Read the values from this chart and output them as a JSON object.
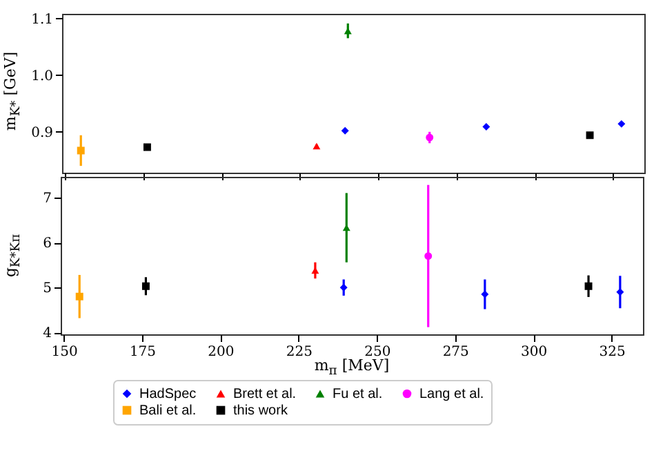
{
  "chart_data": [
    {
      "type": "scatter",
      "ylabel": "m$_{K*}$ [GeV]",
      "xlim": [
        149,
        335
      ],
      "xticks": [
        150,
        175,
        200,
        225,
        250,
        275,
        300,
        325
      ],
      "ylim": [
        0.828,
        1.108
      ],
      "yticks": [
        0.9,
        {
          "value": 1.0,
          "label": "1.0"
        },
        1.1
      ],
      "tick_labels": "y",
      "grid": false,
      "series": [
        {
          "color": "#0000ff",
          "marker": "diamond",
          "x": [
            239.4,
            284.5,
            327.7
          ],
          "values": [
            0.902,
            0.909,
            0.914
          ],
          "errors": [
            0.004,
            0.004,
            0.004
          ]
        },
        {
          "color": "#ff0000",
          "marker": "triangle",
          "x": [
            230.3
          ],
          "values": [
            0.875
          ],
          "errors": [
            0.003
          ]
        },
        {
          "color": "#008000",
          "marker": "triangle",
          "x": [
            240.3
          ],
          "values": [
            1.078
          ],
          "errors": [
            0.013
          ]
        },
        {
          "color": "#ff00ff",
          "marker": "circle",
          "x": [
            266.4
          ],
          "values": [
            0.89
          ],
          "errors": [
            0.01
          ]
        },
        {
          "color": "#ffa500",
          "marker": "square",
          "x": [
            155
          ],
          "values": [
            0.867
          ],
          "errors": [
            0.027
          ]
        },
        {
          "color": "#000000",
          "marker": "square",
          "x": [
            176.2,
            317.6
          ],
          "values": [
            0.873,
            0.894
          ],
          "errors": [
            0.005,
            0.004
          ]
        }
      ]
    },
    {
      "type": "scatter",
      "xlabel": "m$_{π}$ [MeV]",
      "ylabel": "g$_{K*Kπ}$",
      "xlim": [
        149,
        335
      ],
      "xticks": [
        150,
        175,
        200,
        225,
        250,
        275,
        300,
        325
      ],
      "ylim": [
        3.96,
        7.46
      ],
      "yticks": [
        4,
        5,
        6,
        7
      ],
      "grid": false,
      "legend": "bottom",
      "series": [
        {
          "name": "HadSpec",
          "color": "#0000ff",
          "marker": "diamond",
          "x": [
            239.4,
            284.5,
            327.7
          ],
          "values": [
            5.0,
            4.85,
            4.9
          ],
          "errors": [
            0.18,
            0.33,
            0.36
          ]
        },
        {
          "name": "Brett et al.",
          "color": "#ff0000",
          "marker": "triangle",
          "x": [
            230.3
          ],
          "values": [
            5.38
          ],
          "errors": [
            0.18
          ]
        },
        {
          "name": "Fu et al.",
          "color": "#008000",
          "marker": "triangle",
          "x": [
            240.3
          ],
          "values": [
            6.33
          ],
          "errors": [
            0.77
          ]
        },
        {
          "name": "Lang et al.",
          "color": "#ff00ff",
          "marker": "circle",
          "x": [
            266.4
          ],
          "values": [
            5.7
          ],
          "errors": [
            1.58
          ]
        },
        {
          "name": "Bali et al.",
          "color": "#ffa500",
          "marker": "square",
          "x": [
            155
          ],
          "values": [
            4.8
          ],
          "errors": [
            0.48
          ]
        },
        {
          "name": "this work",
          "color": "#000000",
          "marker": "square",
          "x": [
            176.2,
            317.6
          ],
          "values": [
            5.03,
            5.03
          ],
          "errors": [
            0.2,
            0.24
          ]
        }
      ]
    }
  ]
}
